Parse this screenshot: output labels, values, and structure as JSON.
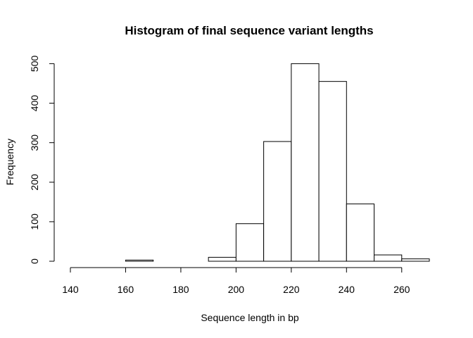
{
  "chart_data": {
    "type": "bar",
    "title": "Histogram of final sequence variant lengths",
    "xlabel": "Sequence length in bp",
    "ylabel": "Frequency",
    "bins": [
      {
        "start": 140,
        "end": 150,
        "count": 0
      },
      {
        "start": 150,
        "end": 160,
        "count": 0
      },
      {
        "start": 160,
        "end": 170,
        "count": 3
      },
      {
        "start": 170,
        "end": 180,
        "count": 0
      },
      {
        "start": 180,
        "end": 190,
        "count": 0
      },
      {
        "start": 190,
        "end": 200,
        "count": 10
      },
      {
        "start": 200,
        "end": 210,
        "count": 95
      },
      {
        "start": 210,
        "end": 220,
        "count": 303
      },
      {
        "start": 220,
        "end": 230,
        "count": 500
      },
      {
        "start": 230,
        "end": 240,
        "count": 455
      },
      {
        "start": 240,
        "end": 250,
        "count": 145
      },
      {
        "start": 250,
        "end": 260,
        "count": 16
      },
      {
        "start": 260,
        "end": 270,
        "count": 6
      }
    ],
    "x_ticks": [
      140,
      160,
      180,
      200,
      220,
      240,
      260
    ],
    "y_ticks": [
      0,
      100,
      200,
      300,
      400,
      500
    ],
    "xlim": [
      140,
      270
    ],
    "ylim": [
      0,
      500
    ],
    "grid": false
  }
}
